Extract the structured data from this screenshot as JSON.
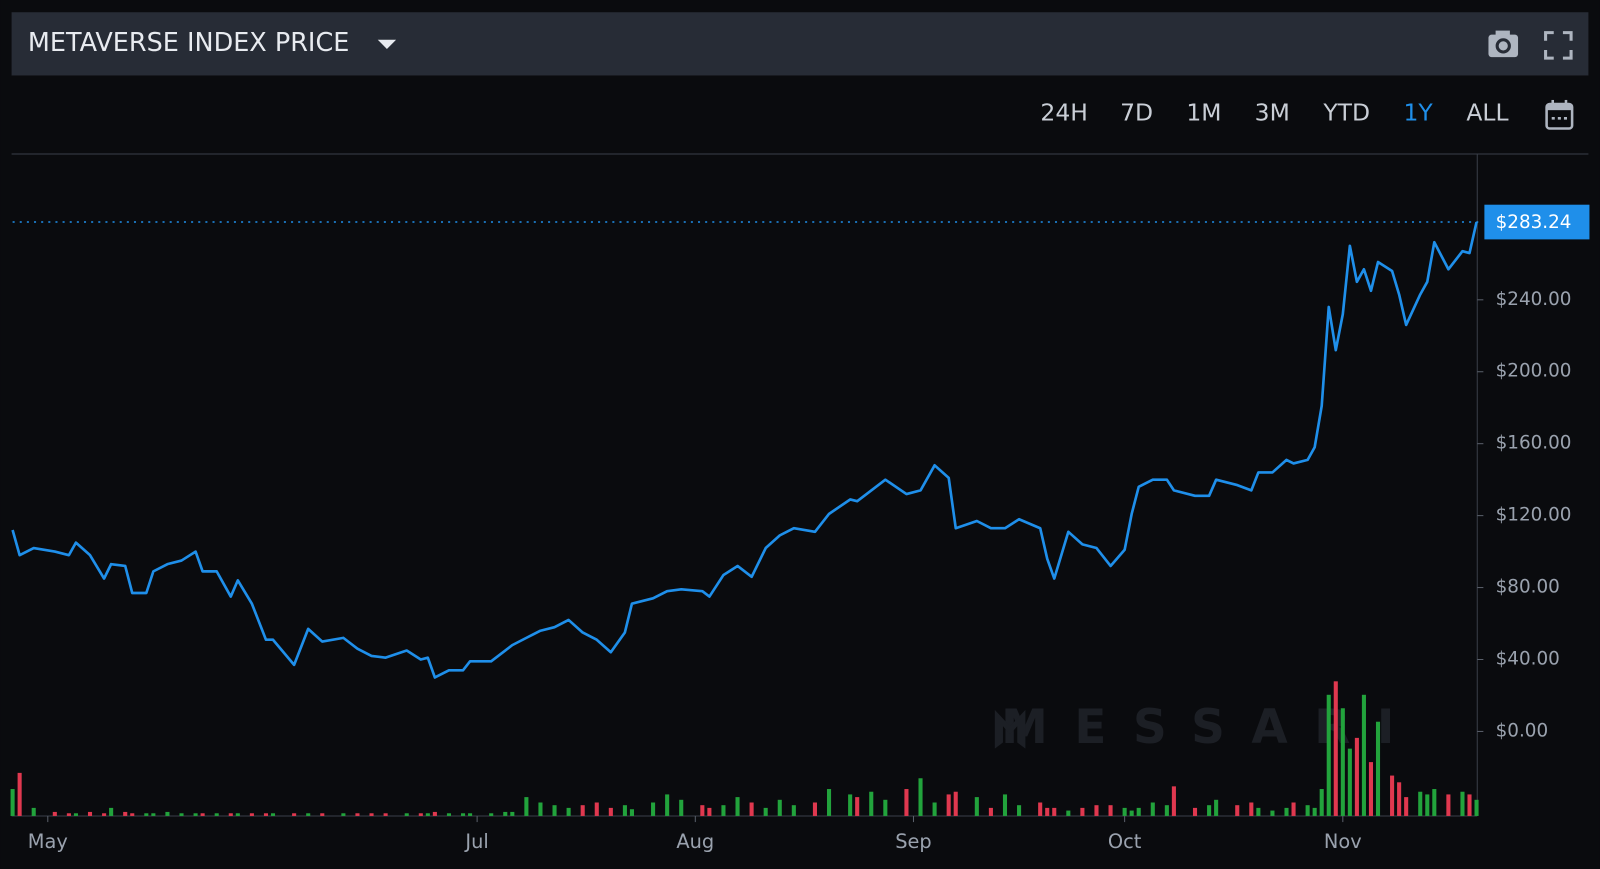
{
  "toolbar": {
    "title": "METAVERSE INDEX PRICE",
    "ranges": [
      "24H",
      "7D",
      "1M",
      "3M",
      "YTD",
      "1Y",
      "ALL"
    ],
    "active_range": "1Y"
  },
  "watermark": "MESSARI",
  "chart_data": {
    "type": "line",
    "x": [
      116,
      117,
      119,
      122,
      124,
      125,
      127,
      129,
      130,
      132,
      133,
      135,
      136,
      138,
      140,
      142,
      143,
      145,
      147,
      148,
      150,
      152,
      153,
      156,
      158,
      160,
      163,
      165,
      167,
      169,
      172,
      174,
      175,
      176,
      178,
      180,
      181,
      184,
      186,
      187,
      189,
      191,
      193,
      195,
      197,
      199,
      201,
      203,
      204,
      207,
      209,
      211,
      214,
      215,
      217,
      219,
      221,
      223,
      225,
      227,
      230,
      232,
      235,
      236,
      238,
      240,
      243,
      245,
      247,
      249,
      250,
      253,
      255,
      257,
      259,
      262,
      263,
      264,
      266,
      268,
      270,
      272,
      274,
      275,
      276,
      278,
      280,
      281,
      284,
      286,
      287,
      290,
      292,
      293,
      295,
      297,
      298,
      300,
      301,
      302,
      303,
      304,
      305,
      306,
      307,
      308,
      309,
      310,
      312,
      313,
      314,
      316,
      317,
      318,
      320,
      322,
      323,
      324
    ],
    "values": [
      112,
      98,
      102,
      100,
      98,
      105,
      98,
      85,
      93,
      92,
      77,
      77,
      89,
      93,
      95,
      100,
      89,
      89,
      75,
      84,
      71,
      51,
      51,
      37,
      57,
      50,
      52,
      46,
      42,
      41,
      45,
      40,
      41,
      30,
      34,
      34,
      39,
      39,
      45,
      48,
      52,
      56,
      58,
      62,
      55,
      51,
      44,
      55,
      71,
      74,
      78,
      79,
      78,
      75,
      87,
      92,
      86,
      102,
      109,
      113,
      111,
      121,
      129,
      128,
      134,
      140,
      132,
      134,
      148,
      141,
      113,
      117,
      113,
      113,
      118,
      113,
      96,
      85,
      111,
      104,
      102,
      92,
      101,
      121,
      136,
      140,
      140,
      134,
      131,
      131,
      140,
      137,
      134,
      144,
      144,
      151,
      149,
      151,
      158,
      181,
      236,
      212,
      232,
      270,
      250,
      257,
      245,
      261,
      256,
      243,
      226,
      243,
      250,
      272,
      257,
      267,
      266,
      283.24
    ],
    "color": "#1f8fea",
    "volume": {
      "axis": "y2",
      "colors": {
        "up": "#22a33c",
        "down": "#e0384f"
      },
      "values": [
        20,
        32,
        6,
        3,
        2,
        2,
        3,
        2,
        6,
        3,
        2,
        2,
        2,
        3,
        2,
        2,
        2,
        2,
        2,
        2,
        2,
        2,
        2,
        2,
        2,
        2,
        2,
        2,
        2,
        2,
        2,
        2,
        2,
        3,
        2,
        2,
        2,
        2,
        3,
        3,
        14,
        10,
        8,
        6,
        8,
        10,
        6,
        8,
        5,
        10,
        16,
        12,
        8,
        6,
        8,
        14,
        10,
        6,
        12,
        8,
        10,
        20,
        16,
        14,
        18,
        12,
        20,
        28,
        10,
        16,
        18,
        14,
        6,
        16,
        8,
        10,
        6,
        6,
        4,
        6,
        8,
        8,
        6,
        4,
        6,
        10,
        8,
        22,
        6,
        8,
        12,
        8,
        10,
        6,
        4,
        6,
        10,
        8,
        6,
        20,
        90,
        100,
        80,
        50,
        58,
        90,
        40,
        70,
        30,
        25,
        14,
        18,
        16,
        20,
        16,
        18,
        16,
        12
      ]
    },
    "xlim": [
      116,
      324.1
    ],
    "xticks": [
      {
        "value": 121,
        "label": "May"
      },
      {
        "value": 182,
        "label": "Jul"
      },
      {
        "value": 213,
        "label": "Aug"
      },
      {
        "value": 244,
        "label": "Sep"
      },
      {
        "value": 274,
        "label": "Oct"
      },
      {
        "value": 305,
        "label": "Nov"
      }
    ],
    "ylim": [
      -47,
      320.5
    ],
    "yticks": [
      {
        "value": 0,
        "label": "$0.00"
      },
      {
        "value": 40,
        "label": "$40.00"
      },
      {
        "value": 80,
        "label": "$80.00"
      },
      {
        "value": 120,
        "label": "$120.00"
      },
      {
        "value": 160,
        "label": "$160.00"
      },
      {
        "value": 200,
        "label": "$200.00"
      },
      {
        "value": 240,
        "label": "$240.00"
      }
    ],
    "y2lim": [
      0,
      100
    ],
    "current_value": {
      "value": 283.24,
      "label": "$283.24"
    }
  }
}
